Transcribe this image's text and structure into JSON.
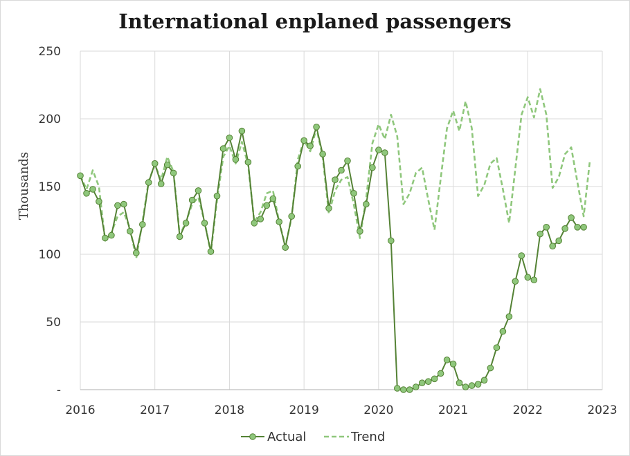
{
  "chart_data": {
    "type": "line",
    "title": "International enplaned passengers",
    "ylabel": "Thousands",
    "xlabel": "",
    "ylim": [
      0,
      250
    ],
    "xlim": [
      2016,
      2023
    ],
    "y_ticks": [
      {
        "value": 0,
        "label": "-"
      },
      {
        "value": 50,
        "label": "50"
      },
      {
        "value": 100,
        "label": "100"
      },
      {
        "value": 150,
        "label": "150"
      },
      {
        "value": 200,
        "label": "200"
      },
      {
        "value": 250,
        "label": "250"
      }
    ],
    "x_ticks": [
      {
        "value": 2016,
        "label": "2016"
      },
      {
        "value": 2017,
        "label": "2017"
      },
      {
        "value": 2018,
        "label": "2018"
      },
      {
        "value": 2019,
        "label": "2019"
      },
      {
        "value": 2020,
        "label": "2020"
      },
      {
        "value": 2021,
        "label": "2021"
      },
      {
        "value": 2022,
        "label": "2022"
      },
      {
        "value": 2023,
        "label": "2023"
      }
    ],
    "grid": true,
    "legend_position": "bottom",
    "x_unit": "monthly, starting 2016",
    "series": [
      {
        "name": "Actual",
        "style": "solid-markers",
        "color": "#548235",
        "marker_color": "#8fc77c",
        "values": [
          158,
          145,
          148,
          139,
          112,
          114,
          136,
          137,
          117,
          101,
          122,
          153,
          167,
          152,
          166,
          160,
          113,
          123,
          140,
          147,
          123,
          102,
          143,
          178,
          186,
          170,
          191,
          168,
          123,
          126,
          136,
          141,
          124,
          105,
          128,
          165,
          184,
          180,
          194,
          174,
          134,
          155,
          162,
          169,
          145,
          117,
          137,
          164,
          177,
          175,
          110,
          1,
          0,
          0,
          2,
          5,
          6,
          8,
          12,
          22,
          19,
          5,
          2,
          3,
          4,
          7,
          16,
          31,
          43,
          54,
          80,
          99,
          83,
          81,
          115,
          120,
          106,
          110,
          119,
          127,
          120,
          120
        ]
      },
      {
        "name": "Trend",
        "style": "dashed",
        "color": "#8fc77c",
        "values": [
          158,
          148,
          162,
          150,
          110,
          116,
          128,
          131,
          119,
          97,
          124,
          154,
          166,
          155,
          172,
          161,
          114,
          124,
          137,
          142,
          124,
          101,
          140,
          172,
          180,
          167,
          183,
          166,
          124,
          131,
          145,
          147,
          124,
          106,
          127,
          170,
          184,
          176,
          193,
          172,
          130,
          147,
          155,
          157,
          137,
          112,
          141,
          182,
          196,
          185,
          203,
          187,
          137,
          145,
          160,
          164,
          140,
          118,
          156,
          193,
          206,
          191,
          213,
          193,
          143,
          151,
          167,
          171,
          148,
          123,
          163,
          203,
          216,
          201,
          222,
          203,
          149,
          157,
          174,
          179,
          153,
          128,
          169
        ]
      }
    ]
  }
}
